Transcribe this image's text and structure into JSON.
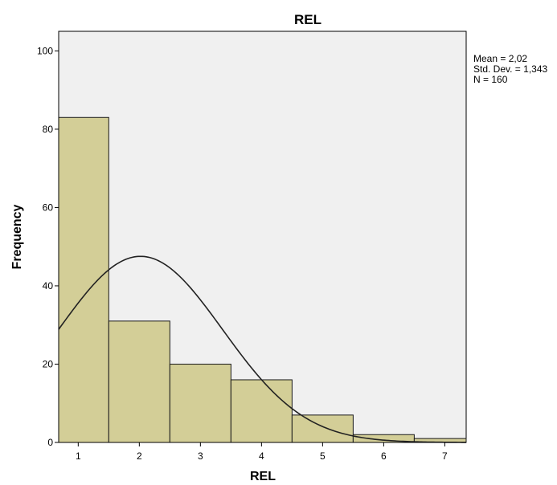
{
  "chart_data": {
    "type": "bar",
    "title": "REL",
    "xlabel": "REL",
    "ylabel": "Frequency",
    "categories": [
      "1",
      "2",
      "3",
      "4",
      "5",
      "6",
      "7"
    ],
    "values": [
      83,
      31,
      20,
      16,
      7,
      2,
      1
    ],
    "x_ticks": [
      "1",
      "2",
      "3",
      "4",
      "5",
      "6",
      "7"
    ],
    "y_ticks": [
      "0",
      "20",
      "40",
      "60",
      "80",
      "100"
    ],
    "xlim": [
      0.68,
      7.35
    ],
    "ylim": [
      0,
      105
    ],
    "grid": false,
    "stats": {
      "mean_text": "Mean = 2,02",
      "std_text": "Std. Dev. = 1,343",
      "n_text": "N = 160"
    },
    "normal_curve": {
      "mean": 2.02,
      "std": 1.343,
      "n": 160,
      "bin_width": 1
    },
    "colors": {
      "plot_background": "#f0f0f0",
      "bar_fill": "#d3ce97",
      "bar_stroke": "#1a1a1a",
      "curve": "#222222",
      "axis": "#000000"
    }
  }
}
